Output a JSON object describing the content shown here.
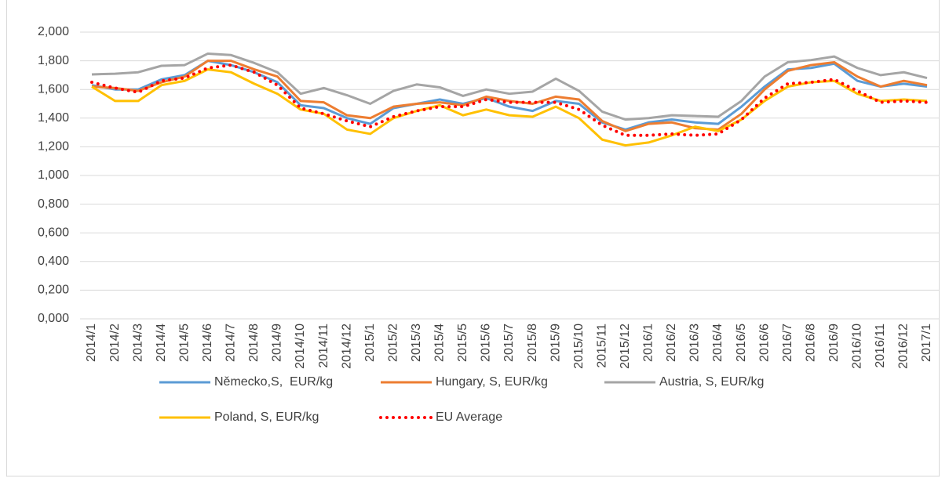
{
  "chart_data": {
    "type": "line",
    "categories": [
      "2014/1",
      "2014/2",
      "2014/3",
      "2014/4",
      "2014/5",
      "2014/6",
      "2014/7",
      "2014/8",
      "2014/9",
      "2014/10",
      "2014/11",
      "2014/12",
      "2015/1",
      "2015/2",
      "2015/3",
      "2015/4",
      "2015/5",
      "2015/6",
      "2015/7",
      "2015/8",
      "2015/9",
      "2015/10",
      "2015/11",
      "2015/12",
      "2016/1",
      "2016/2",
      "2016/3",
      "2016/4",
      "2016/5",
      "2016/6",
      "2016/7",
      "2016/8",
      "2016/9",
      "2016/10",
      "2016/11",
      "2016/12",
      "2017/1"
    ],
    "series": [
      {
        "name": "Německo,S,  EUR/kg",
        "color": "#5b9bd5",
        "values": [
          1.63,
          1.6,
          1.6,
          1.67,
          1.7,
          1.8,
          1.77,
          1.72,
          1.65,
          1.49,
          1.47,
          1.4,
          1.36,
          1.47,
          1.5,
          1.53,
          1.5,
          1.54,
          1.48,
          1.45,
          1.52,
          1.5,
          1.37,
          1.32,
          1.37,
          1.39,
          1.37,
          1.36,
          1.48,
          1.62,
          1.74,
          1.75,
          1.78,
          1.66,
          1.62,
          1.64,
          1.62
        ]
      },
      {
        "name": "Hungary, S, EUR/kg",
        "color": "#ed7d31",
        "values": [
          1.62,
          1.61,
          1.59,
          1.65,
          1.69,
          1.8,
          1.8,
          1.74,
          1.69,
          1.52,
          1.51,
          1.42,
          1.4,
          1.48,
          1.5,
          1.51,
          1.49,
          1.55,
          1.52,
          1.5,
          1.55,
          1.53,
          1.38,
          1.31,
          1.36,
          1.37,
          1.33,
          1.32,
          1.43,
          1.6,
          1.73,
          1.77,
          1.79,
          1.69,
          1.62,
          1.66,
          1.63
        ]
      },
      {
        "name": "Austria, S, EUR/kg",
        "color": "#a5a5a5",
        "values": [
          1.705,
          1.71,
          1.72,
          1.765,
          1.77,
          1.85,
          1.84,
          1.785,
          1.72,
          1.57,
          1.61,
          1.56,
          1.5,
          1.59,
          1.635,
          1.615,
          1.555,
          1.6,
          1.57,
          1.585,
          1.675,
          1.59,
          1.445,
          1.39,
          1.4,
          1.42,
          1.415,
          1.41,
          1.52,
          1.69,
          1.79,
          1.805,
          1.83,
          1.75,
          1.7,
          1.72,
          1.68
        ]
      },
      {
        "name": "Poland, S, EUR/kg",
        "color": "#ffc000",
        "values": [
          1.62,
          1.52,
          1.52,
          1.63,
          1.66,
          1.74,
          1.72,
          1.64,
          1.57,
          1.46,
          1.43,
          1.32,
          1.29,
          1.4,
          1.45,
          1.49,
          1.42,
          1.46,
          1.42,
          1.41,
          1.48,
          1.4,
          1.25,
          1.21,
          1.23,
          1.28,
          1.34,
          1.31,
          1.39,
          1.52,
          1.62,
          1.65,
          1.66,
          1.57,
          1.52,
          1.53,
          1.52
        ]
      },
      {
        "name": "EU Average",
        "color": "#ff0000",
        "line_style": "dotted",
        "values": [
          1.65,
          1.61,
          1.58,
          1.66,
          1.68,
          1.75,
          1.77,
          1.72,
          1.63,
          1.47,
          1.43,
          1.38,
          1.34,
          1.41,
          1.45,
          1.48,
          1.48,
          1.53,
          1.51,
          1.51,
          1.51,
          1.46,
          1.35,
          1.28,
          1.28,
          1.29,
          1.28,
          1.29,
          1.39,
          1.54,
          1.64,
          1.65,
          1.67,
          1.59,
          1.51,
          1.52,
          1.51
        ]
      }
    ],
    "ylim": [
      0,
      2
    ],
    "yticks": [
      {
        "value": 0,
        "label": "0,000"
      },
      {
        "value": 0.2,
        "label": "0,200"
      },
      {
        "value": 0.4,
        "label": "0,400"
      },
      {
        "value": 0.6,
        "label": "0,600"
      },
      {
        "value": 0.8,
        "label": "0,800"
      },
      {
        "value": 1,
        "label": "1,000"
      },
      {
        "value": 1.2,
        "label": "1,200"
      },
      {
        "value": 1.4,
        "label": "1,400"
      },
      {
        "value": 1.6,
        "label": "1,600"
      },
      {
        "value": 1.8,
        "label": "1,800"
      },
      {
        "value": 2,
        "label": "2,000"
      }
    ],
    "grid": true,
    "legend": "bottom"
  }
}
